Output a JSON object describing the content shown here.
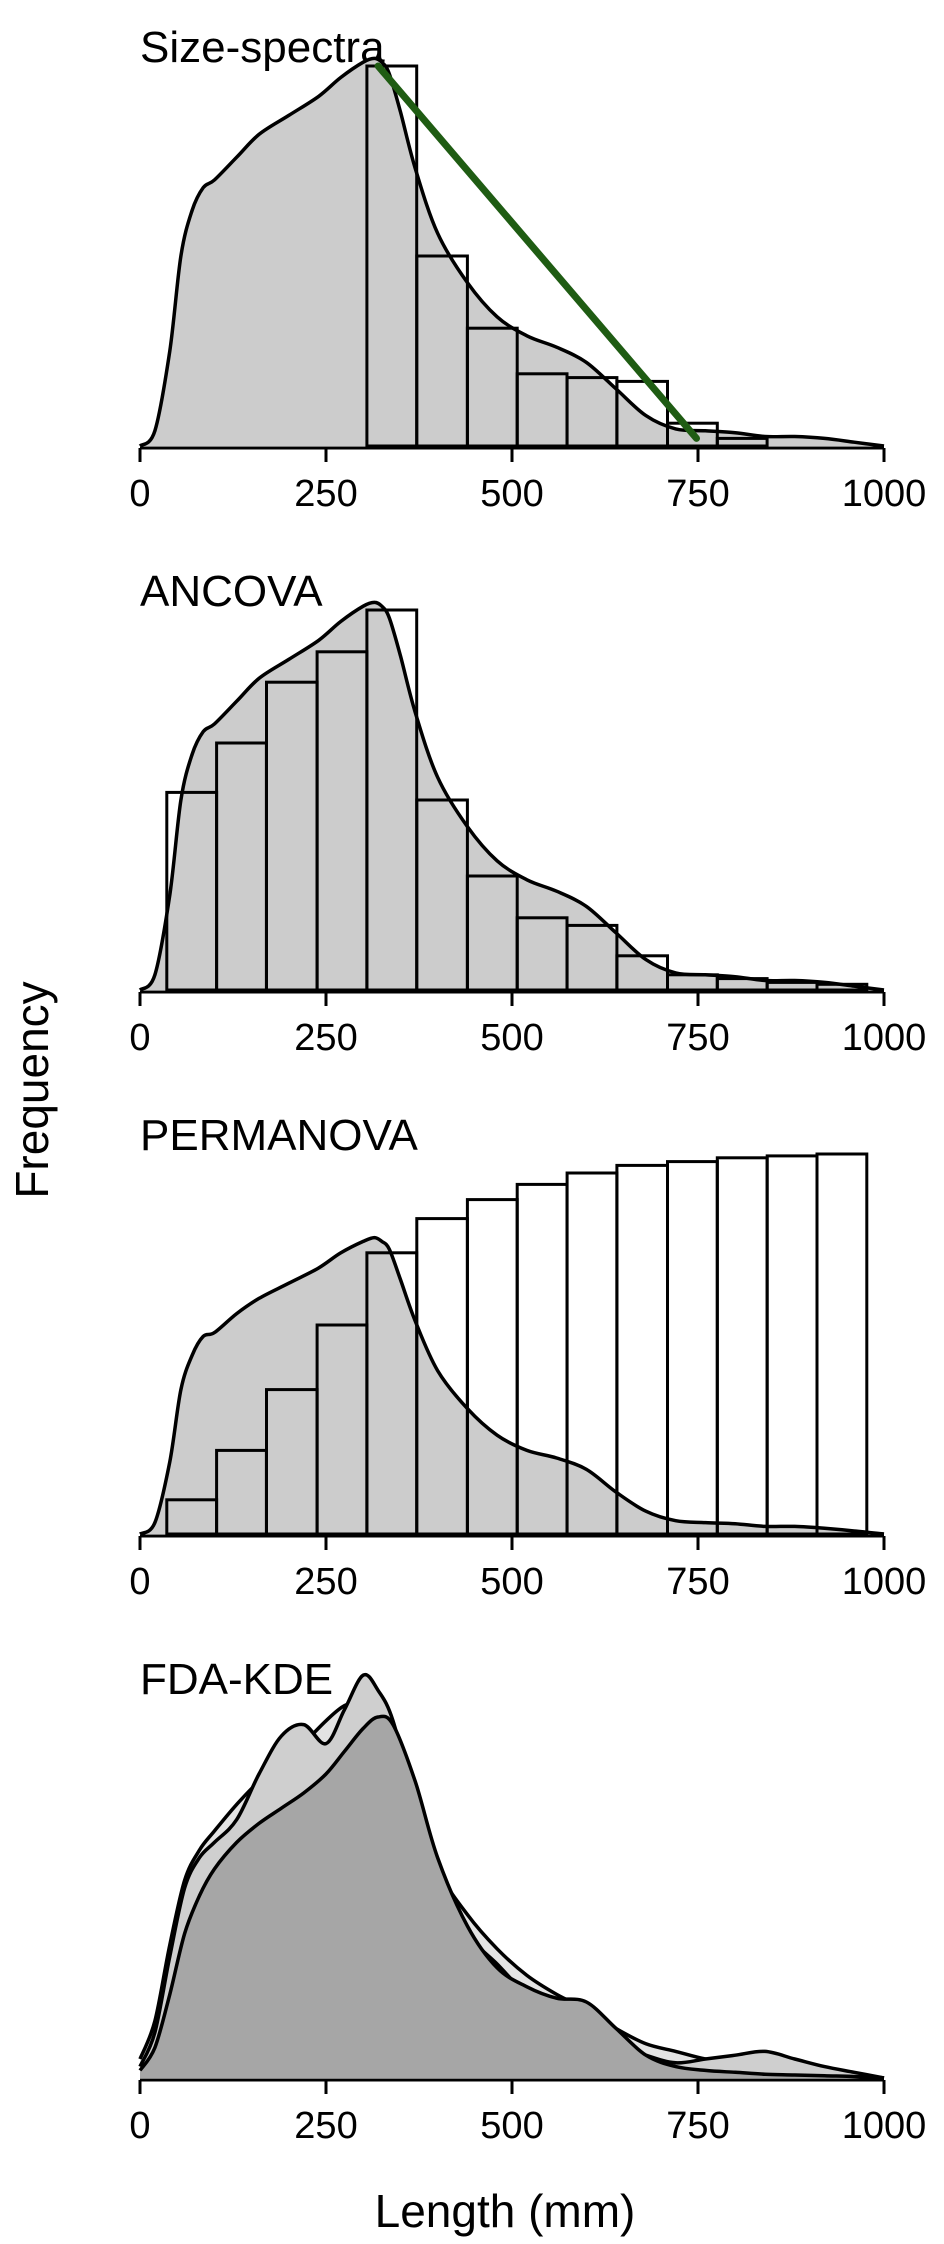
{
  "figure": {
    "ylabel": "Frequency",
    "xlabel": "Length (mm)"
  },
  "chart_data": [
    {
      "type": "bar",
      "title": "Size-spectra",
      "xlim": [
        0,
        1000
      ],
      "x_ticks": [
        "0",
        "250",
        "500",
        "750",
        "1000"
      ],
      "bin_width": 67,
      "bars": [
        {
          "start": 305,
          "end": 372,
          "value": 1.0
        },
        {
          "start": 372,
          "end": 440,
          "value": 0.5
        },
        {
          "start": 440,
          "end": 507,
          "value": 0.31
        },
        {
          "start": 507,
          "end": 574,
          "value": 0.19
        },
        {
          "start": 574,
          "end": 641,
          "value": 0.18
        },
        {
          "start": 641,
          "end": 709,
          "value": 0.17
        },
        {
          "start": 709,
          "end": 776,
          "value": 0.06
        },
        {
          "start": 776,
          "end": 843,
          "value": 0.02
        }
      ],
      "density": {
        "x": [
          0,
          20,
          40,
          55,
          70,
          85,
          100,
          130,
          160,
          200,
          240,
          270,
          300,
          315,
          325,
          335,
          350,
          370,
          400,
          440,
          480,
          520,
          560,
          600,
          640,
          680,
          720,
          760,
          800,
          840,
          880,
          920,
          960,
          1000
        ],
        "y": [
          0.0,
          0.04,
          0.25,
          0.5,
          0.62,
          0.68,
          0.7,
          0.76,
          0.82,
          0.87,
          0.92,
          0.97,
          1.01,
          1.02,
          1.01,
          0.98,
          0.88,
          0.73,
          0.56,
          0.43,
          0.34,
          0.29,
          0.26,
          0.22,
          0.15,
          0.08,
          0.045,
          0.04,
          0.035,
          0.025,
          0.025,
          0.02,
          0.01,
          0.0
        ]
      },
      "trend_line": {
        "color": "#1f5c13",
        "x": [
          320,
          748
        ],
        "y": [
          1.0,
          0.02
        ]
      }
    },
    {
      "type": "bar",
      "title": "ANCOVA",
      "xlim": [
        0,
        1000
      ],
      "x_ticks": [
        "0",
        "250",
        "500",
        "750",
        "1000"
      ],
      "bin_width": 67,
      "bars": [
        {
          "start": 36,
          "end": 103,
          "value": 0.52
        },
        {
          "start": 103,
          "end": 170,
          "value": 0.65
        },
        {
          "start": 170,
          "end": 238,
          "value": 0.81
        },
        {
          "start": 238,
          "end": 305,
          "value": 0.89
        },
        {
          "start": 305,
          "end": 372,
          "value": 1.0
        },
        {
          "start": 372,
          "end": 440,
          "value": 0.5
        },
        {
          "start": 440,
          "end": 507,
          "value": 0.3
        },
        {
          "start": 507,
          "end": 574,
          "value": 0.19
        },
        {
          "start": 574,
          "end": 641,
          "value": 0.17
        },
        {
          "start": 641,
          "end": 709,
          "value": 0.09
        },
        {
          "start": 709,
          "end": 776,
          "value": 0.04
        },
        {
          "start": 776,
          "end": 843,
          "value": 0.03
        },
        {
          "start": 843,
          "end": 910,
          "value": 0.02
        },
        {
          "start": 910,
          "end": 977,
          "value": 0.015
        }
      ],
      "density": {
        "x": [
          0,
          20,
          40,
          55,
          70,
          85,
          100,
          130,
          160,
          200,
          240,
          270,
          300,
          315,
          325,
          335,
          350,
          370,
          400,
          440,
          480,
          520,
          560,
          600,
          640,
          680,
          720,
          760,
          800,
          840,
          880,
          920,
          960,
          1000
        ],
        "y": [
          0.0,
          0.04,
          0.25,
          0.5,
          0.62,
          0.68,
          0.7,
          0.76,
          0.82,
          0.87,
          0.92,
          0.97,
          1.01,
          1.02,
          1.01,
          0.98,
          0.88,
          0.73,
          0.56,
          0.43,
          0.34,
          0.29,
          0.26,
          0.22,
          0.15,
          0.08,
          0.045,
          0.04,
          0.035,
          0.025,
          0.025,
          0.02,
          0.01,
          0.0
        ]
      }
    },
    {
      "type": "bar",
      "title": "PERMANOVA",
      "xlim": [
        0,
        1000
      ],
      "x_ticks": [
        "0",
        "250",
        "500",
        "750",
        "1000"
      ],
      "bin_width": 67,
      "bars": [
        {
          "start": 36,
          "end": 103,
          "value": 0.09
        },
        {
          "start": 103,
          "end": 170,
          "value": 0.22
        },
        {
          "start": 170,
          "end": 238,
          "value": 0.38
        },
        {
          "start": 238,
          "end": 305,
          "value": 0.55
        },
        {
          "start": 305,
          "end": 372,
          "value": 0.74
        },
        {
          "start": 372,
          "end": 440,
          "value": 0.83
        },
        {
          "start": 440,
          "end": 507,
          "value": 0.88
        },
        {
          "start": 507,
          "end": 574,
          "value": 0.92
        },
        {
          "start": 574,
          "end": 641,
          "value": 0.95
        },
        {
          "start": 641,
          "end": 709,
          "value": 0.97
        },
        {
          "start": 709,
          "end": 776,
          "value": 0.98
        },
        {
          "start": 776,
          "end": 843,
          "value": 0.99
        },
        {
          "start": 843,
          "end": 910,
          "value": 0.995
        },
        {
          "start": 910,
          "end": 977,
          "value": 1.0
        }
      ],
      "density": {
        "x": [
          0,
          20,
          40,
          55,
          70,
          85,
          100,
          130,
          160,
          200,
          240,
          270,
          300,
          315,
          325,
          335,
          350,
          370,
          400,
          440,
          480,
          520,
          560,
          600,
          640,
          680,
          720,
          760,
          800,
          840,
          880,
          920,
          960,
          1000
        ],
        "y": [
          0.0,
          0.03,
          0.19,
          0.38,
          0.47,
          0.52,
          0.53,
          0.58,
          0.62,
          0.66,
          0.7,
          0.74,
          0.77,
          0.78,
          0.77,
          0.75,
          0.67,
          0.56,
          0.43,
          0.33,
          0.26,
          0.22,
          0.2,
          0.17,
          0.11,
          0.06,
          0.035,
          0.03,
          0.027,
          0.02,
          0.02,
          0.015,
          0.008,
          0.0
        ]
      }
    },
    {
      "type": "area",
      "title": "FDA-KDE",
      "xlim": [
        0,
        1000
      ],
      "x_ticks": [
        "0",
        "250",
        "500",
        "750",
        "1000"
      ],
      "series": [
        {
          "fill": "#e3e3e3",
          "x": [
            0,
            20,
            40,
            60,
            80,
            100,
            130,
            160,
            190,
            220,
            250,
            275,
            300,
            320,
            340,
            370,
            400,
            440,
            480,
            520,
            560,
            600,
            640,
            680,
            720,
            760,
            800,
            840,
            880,
            920,
            960,
            1000
          ],
          "y": [
            0.05,
            0.15,
            0.35,
            0.52,
            0.6,
            0.65,
            0.72,
            0.78,
            0.82,
            0.88,
            0.94,
            0.98,
            0.99,
            0.96,
            0.88,
            0.72,
            0.55,
            0.43,
            0.34,
            0.27,
            0.22,
            0.18,
            0.13,
            0.09,
            0.07,
            0.05,
            0.04,
            0.03,
            0.025,
            0.02,
            0.01,
            0.0
          ]
        },
        {
          "fill": "#cfcfcf",
          "x": [
            0,
            20,
            40,
            60,
            80,
            100,
            130,
            160,
            190,
            220,
            250,
            275,
            300,
            320,
            340,
            370,
            400,
            440,
            480,
            520,
            560,
            600,
            640,
            680,
            720,
            760,
            800,
            840,
            880,
            920,
            960,
            1000
          ],
          "y": [
            0.03,
            0.12,
            0.32,
            0.5,
            0.58,
            0.62,
            0.68,
            0.8,
            0.9,
            0.93,
            0.88,
            0.97,
            1.06,
            1.02,
            0.94,
            0.72,
            0.53,
            0.38,
            0.3,
            0.22,
            0.17,
            0.14,
            0.09,
            0.06,
            0.04,
            0.05,
            0.06,
            0.07,
            0.05,
            0.03,
            0.015,
            0.0
          ]
        },
        {
          "fill": "#a6a6a6",
          "x": [
            0,
            20,
            40,
            60,
            80,
            100,
            130,
            160,
            190,
            220,
            250,
            275,
            300,
            320,
            340,
            370,
            400,
            440,
            480,
            520,
            560,
            600,
            640,
            680,
            720,
            760,
            800,
            840,
            880,
            920,
            960,
            1000
          ],
          "y": [
            0.02,
            0.08,
            0.22,
            0.38,
            0.48,
            0.55,
            0.62,
            0.67,
            0.71,
            0.75,
            0.8,
            0.86,
            0.92,
            0.95,
            0.93,
            0.78,
            0.58,
            0.4,
            0.29,
            0.24,
            0.21,
            0.2,
            0.13,
            0.06,
            0.03,
            0.02,
            0.015,
            0.01,
            0.008,
            0.006,
            0.004,
            0.0
          ]
        }
      ]
    }
  ]
}
